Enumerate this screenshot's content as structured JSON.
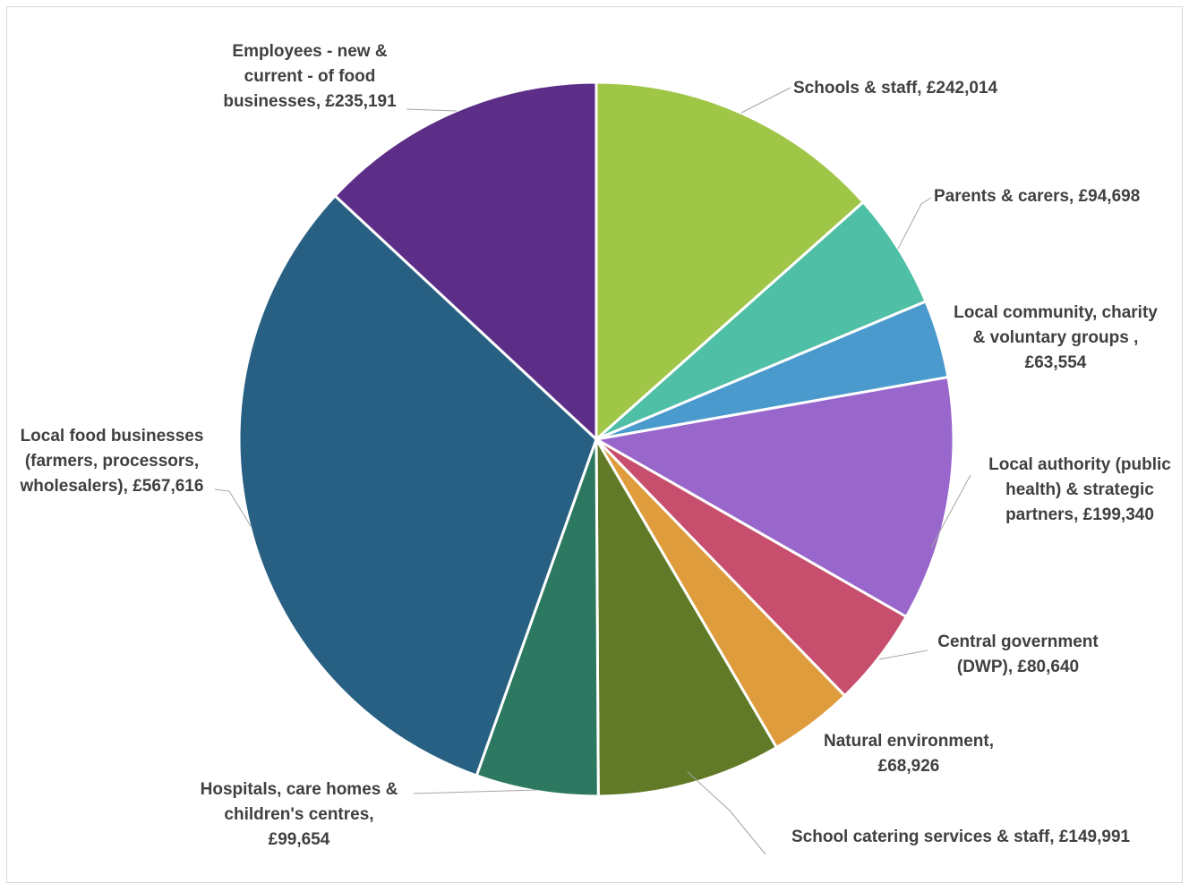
{
  "chart_data": {
    "type": "pie",
    "slices": [
      {
        "label": "Schools & staff",
        "value": 242014,
        "color": "#a0c648",
        "lines": [
          "Schools & staff, £242,014"
        ]
      },
      {
        "label": "Parents & carers",
        "value": 94698,
        "color": "#4fbfa5",
        "lines": [
          "Parents & carers, £94,698"
        ]
      },
      {
        "label": "Local community, charity & voluntary groups",
        "value": 63554,
        "color": "#4a9acd",
        "lines": [
          "Local community, charity",
          "& voluntary groups ,",
          "£63,554"
        ]
      },
      {
        "label": "Local authority (public health) & strategic partners",
        "value": 199340,
        "color": "#9966cc",
        "lines": [
          "Local authority (public",
          "health) & strategic",
          "partners, £199,340"
        ]
      },
      {
        "label": "Central government (DWP)",
        "value": 80640,
        "color": "#c84e6d",
        "lines": [
          "Central government",
          "(DWP), £80,640"
        ]
      },
      {
        "label": "Natural environment",
        "value": 68926,
        "color": "#df9c3c",
        "lines": [
          "Natural environment,",
          "£68,926"
        ]
      },
      {
        "label": "School catering services & staff",
        "value": 149991,
        "color": "#617a27",
        "lines": [
          "School catering services & staff, £149,991"
        ]
      },
      {
        "label": "Hospitals, care homes & children's centres",
        "value": 99654,
        "color": "#2c7860",
        "lines": [
          "Hospitals, care homes &",
          "children's centres,",
          "£99,654"
        ]
      },
      {
        "label": "Local food businesses (farmers, processors, wholesalers)",
        "value": 567616,
        "color": "#276082",
        "lines": [
          "Local food businesses",
          "(farmers, processors,",
          "wholesalers), £567,616"
        ]
      },
      {
        "label": "Employees - new & current - of food businesses",
        "value": 235191,
        "color": "#5d2e87",
        "lines": [
          "Employees - new &",
          "current - of food",
          "businesses, £235,191"
        ]
      }
    ]
  }
}
